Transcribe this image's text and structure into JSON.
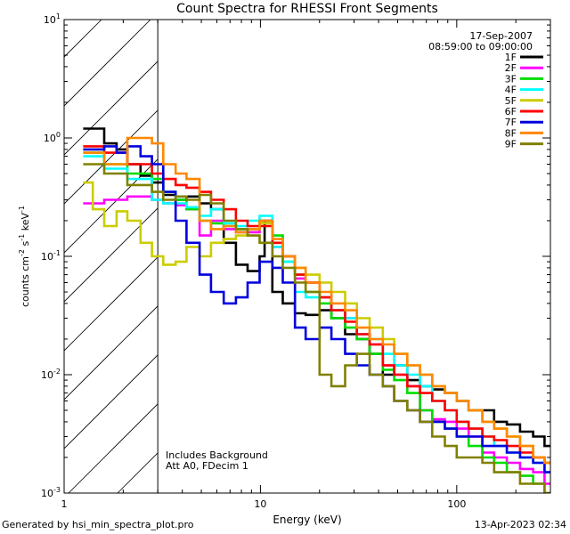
{
  "chart_data": {
    "type": "line",
    "style": "step",
    "title": "Count Spectra for RHESSI Front Segments",
    "xlabel": "Energy (keV)",
    "ylabel": "counts cm^-2 s^-1 keV^-1",
    "xscale": "log",
    "yscale": "log",
    "xlim": [
      1,
      300
    ],
    "ylim": [
      0.001,
      10
    ],
    "x_ticks": [
      {
        "v": 1,
        "label": "1"
      },
      {
        "v": 10,
        "label": "10"
      },
      {
        "v": 100,
        "label": "100"
      }
    ],
    "y_ticks": [
      {
        "v": 0.001,
        "base": "10",
        "exp": "-3"
      },
      {
        "v": 0.01,
        "base": "10",
        "exp": "-2"
      },
      {
        "v": 0.1,
        "base": "10",
        "exp": "-1"
      },
      {
        "v": 1,
        "base": "10",
        "exp": "0"
      },
      {
        "v": 10,
        "base": "10",
        "exp": "1"
      }
    ],
    "hatched_region": {
      "from": 1,
      "to": 3
    },
    "legend": {
      "date": "17-Sep-2007",
      "time_range": "08:59:00 to 09:00:00",
      "position": "top-right"
    },
    "annotations": [
      "Includes Background",
      "Att A0, FDecim 1"
    ],
    "series": [
      {
        "name": "1F",
        "color": "#000000",
        "x": [
          1.25,
          1.4,
          1.6,
          1.85,
          2.1,
          2.45,
          2.8,
          3.2,
          3.7,
          4.2,
          4.9,
          5.6,
          6.5,
          7.5,
          8.6,
          9.9,
          10.5,
          11.5,
          13,
          15,
          17,
          20,
          23,
          27,
          31,
          36,
          42,
          48,
          56,
          65,
          75,
          87,
          100,
          115,
          135,
          155,
          180,
          210,
          245,
          280
        ],
        "y": [
          1.2,
          1.2,
          0.9,
          0.8,
          0.6,
          0.48,
          0.42,
          0.33,
          0.3,
          0.32,
          0.28,
          0.25,
          0.13,
          0.085,
          0.075,
          0.1,
          0.2,
          0.05,
          0.04,
          0.033,
          0.032,
          0.035,
          0.03,
          0.022,
          0.02,
          0.015,
          0.01,
          0.012,
          0.009,
          0.008,
          0.0075,
          0.007,
          0.006,
          0.005,
          0.005,
          0.004,
          0.0038,
          0.0033,
          0.003,
          0.0025
        ]
      },
      {
        "name": "2F",
        "color": "#ff00ff",
        "x": [
          1.25,
          1.6,
          2.1,
          2.8,
          3.2,
          3.7,
          4.2,
          4.9,
          5.6,
          6.5,
          7.5,
          8.6,
          9.9,
          11.5,
          13,
          15,
          17,
          20,
          23,
          27,
          31,
          36,
          42,
          48,
          56,
          65,
          75,
          87,
          100,
          115,
          135,
          155,
          180,
          210,
          245,
          280
        ],
        "y": [
          0.28,
          0.3,
          0.32,
          0.3,
          0.28,
          0.27,
          0.25,
          0.15,
          0.2,
          0.17,
          0.16,
          0.16,
          0.2,
          0.12,
          0.1,
          0.065,
          0.06,
          0.045,
          0.035,
          0.03,
          0.022,
          0.018,
          0.012,
          0.01,
          0.008,
          0.005,
          0.0042,
          0.004,
          0.0035,
          0.003,
          0.0022,
          0.002,
          0.0018,
          0.0016,
          0.0015,
          0.0012
        ]
      },
      {
        "name": "3F",
        "color": "#00dd00",
        "x": [
          1.25,
          1.6,
          2.1,
          2.8,
          3.2,
          3.7,
          4.2,
          4.9,
          5.6,
          6.5,
          7.5,
          8.6,
          9.9,
          11.5,
          13,
          15,
          17,
          20,
          23,
          27,
          31,
          36,
          42,
          48,
          56,
          65,
          75,
          87,
          100,
          115,
          135,
          155,
          180,
          210,
          245,
          280
        ],
        "y": [
          0.75,
          0.6,
          0.5,
          0.45,
          0.35,
          0.3,
          0.25,
          0.2,
          0.19,
          0.18,
          0.17,
          0.17,
          0.2,
          0.15,
          0.09,
          0.07,
          0.05,
          0.04,
          0.03,
          0.025,
          0.02,
          0.015,
          0.011,
          0.009,
          0.007,
          0.005,
          0.004,
          0.0035,
          0.003,
          0.0025,
          0.002,
          0.0018,
          0.0015,
          0.0014,
          0.0012,
          0.001
        ]
      },
      {
        "name": "4F",
        "color": "#00ffff",
        "x": [
          1.25,
          1.6,
          2.1,
          2.8,
          3.2,
          3.7,
          4.2,
          4.9,
          5.6,
          6.5,
          7.5,
          8.6,
          9.9,
          11.5,
          13,
          15,
          17,
          20,
          23,
          27,
          31,
          36,
          42,
          48,
          56,
          65,
          75,
          87,
          100,
          115,
          135,
          155,
          180,
          210,
          245,
          280
        ],
        "y": [
          0.7,
          0.55,
          0.45,
          0.3,
          0.28,
          0.28,
          0.26,
          0.22,
          0.25,
          0.19,
          0.18,
          0.2,
          0.22,
          0.12,
          0.09,
          0.05,
          0.045,
          0.045,
          0.035,
          0.03,
          0.022,
          0.02,
          0.015,
          0.012,
          0.01,
          0.008,
          0.006,
          0.005,
          0.004,
          0.0035,
          0.003,
          0.0025,
          0.0022,
          0.002,
          0.0018,
          0.0015
        ]
      },
      {
        "name": "5F",
        "color": "#cccc00",
        "x": [
          1.25,
          1.4,
          1.6,
          1.85,
          2.1,
          2.45,
          2.8,
          3.2,
          3.7,
          4.2,
          4.9,
          5.6,
          6.5,
          7.5,
          8.6,
          9.9,
          11.5,
          13,
          15,
          17,
          20,
          23,
          27,
          31,
          36,
          42,
          48,
          56,
          65,
          75,
          87,
          100,
          115,
          135,
          155,
          180,
          210,
          245,
          280
        ],
        "y": [
          0.42,
          0.25,
          0.18,
          0.24,
          0.2,
          0.13,
          0.1,
          0.085,
          0.09,
          0.12,
          0.1,
          0.13,
          0.14,
          0.15,
          0.17,
          0.19,
          0.13,
          0.1,
          0.08,
          0.07,
          0.06,
          0.05,
          0.04,
          0.03,
          0.025,
          0.02,
          0.015,
          0.012,
          0.01,
          0.008,
          0.007,
          0.006,
          0.005,
          0.004,
          0.0035,
          0.003,
          0.0025,
          0.002,
          0.0018
        ]
      },
      {
        "name": "6F",
        "color": "#ff0000",
        "x": [
          1.25,
          1.6,
          2.1,
          2.8,
          3.2,
          3.7,
          4.2,
          4.9,
          5.6,
          6.5,
          7.5,
          8.6,
          9.9,
          11.5,
          13,
          15,
          17,
          20,
          23,
          27,
          31,
          36,
          42,
          48,
          56,
          65,
          75,
          87,
          100,
          115,
          135,
          155,
          180,
          210,
          245,
          280
        ],
        "y": [
          0.85,
          0.75,
          0.6,
          0.5,
          0.45,
          0.4,
          0.38,
          0.35,
          0.3,
          0.25,
          0.2,
          0.18,
          0.18,
          0.13,
          0.1,
          0.07,
          0.06,
          0.045,
          0.035,
          0.028,
          0.022,
          0.018,
          0.012,
          0.01,
          0.008,
          0.007,
          0.006,
          0.005,
          0.004,
          0.0035,
          0.003,
          0.0028,
          0.0025,
          0.0022,
          0.002,
          0.0018
        ]
      },
      {
        "name": "7F",
        "color": "#0000dd",
        "x": [
          1.25,
          1.6,
          1.85,
          2.1,
          2.45,
          2.8,
          3.2,
          3.7,
          4.2,
          4.9,
          5.6,
          6.5,
          7.5,
          8.6,
          9.9,
          11.5,
          13,
          15,
          17,
          20,
          23,
          27,
          31,
          36,
          42,
          48,
          56,
          65,
          75,
          87,
          100,
          115,
          135,
          155,
          180,
          210,
          245,
          280
        ],
        "y": [
          0.8,
          0.85,
          0.75,
          0.85,
          0.7,
          0.6,
          0.35,
          0.2,
          0.13,
          0.07,
          0.05,
          0.04,
          0.045,
          0.06,
          0.09,
          0.08,
          0.06,
          0.025,
          0.02,
          0.025,
          0.02,
          0.015,
          0.012,
          0.01,
          0.008,
          0.006,
          0.005,
          0.004,
          0.004,
          0.0035,
          0.003,
          0.003,
          0.0025,
          0.0025,
          0.0022,
          0.002,
          0.0018,
          0.0015
        ]
      },
      {
        "name": "8F",
        "color": "#ff8800",
        "x": [
          1.25,
          1.6,
          2.1,
          2.8,
          3.2,
          3.7,
          4.2,
          4.9,
          5.6,
          6.5,
          7.5,
          8.6,
          9.9,
          11.5,
          13,
          15,
          17,
          20,
          23,
          27,
          31,
          36,
          42,
          48,
          56,
          65,
          75,
          87,
          100,
          115,
          135,
          155,
          180,
          210,
          245,
          280
        ],
        "y": [
          0.75,
          0.6,
          1.0,
          0.9,
          0.6,
          0.5,
          0.45,
          0.2,
          0.17,
          0.18,
          0.16,
          0.17,
          0.2,
          0.14,
          0.1,
          0.08,
          0.06,
          0.05,
          0.04,
          0.035,
          0.025,
          0.02,
          0.018,
          0.015,
          0.012,
          0.01,
          0.008,
          0.007,
          0.006,
          0.005,
          0.004,
          0.0035,
          0.003,
          0.0025,
          0.002,
          0.0018
        ]
      },
      {
        "name": "9F",
        "color": "#808000",
        "x": [
          1.25,
          1.6,
          2.1,
          2.8,
          3.2,
          3.7,
          4.2,
          4.9,
          5.6,
          6.5,
          7.5,
          8.6,
          9.9,
          11.5,
          13,
          15,
          17,
          20,
          23,
          27,
          31,
          36,
          42,
          48,
          56,
          65,
          75,
          87,
          100,
          115,
          135,
          155,
          180,
          210,
          245,
          280
        ],
        "y": [
          0.6,
          0.5,
          0.4,
          0.35,
          0.3,
          0.32,
          0.3,
          0.33,
          0.28,
          0.2,
          0.17,
          0.15,
          0.13,
          0.1,
          0.08,
          0.06,
          0.05,
          0.01,
          0.008,
          0.012,
          0.015,
          0.01,
          0.008,
          0.006,
          0.005,
          0.004,
          0.003,
          0.0025,
          0.002,
          0.002,
          0.0018,
          0.0015,
          0.0015,
          0.0012,
          0.0012,
          0.001
        ]
      }
    ]
  },
  "footer": {
    "left": "Generated by hsi_min_spectra_plot.pro",
    "right": "13-Apr-2023 02:34"
  }
}
